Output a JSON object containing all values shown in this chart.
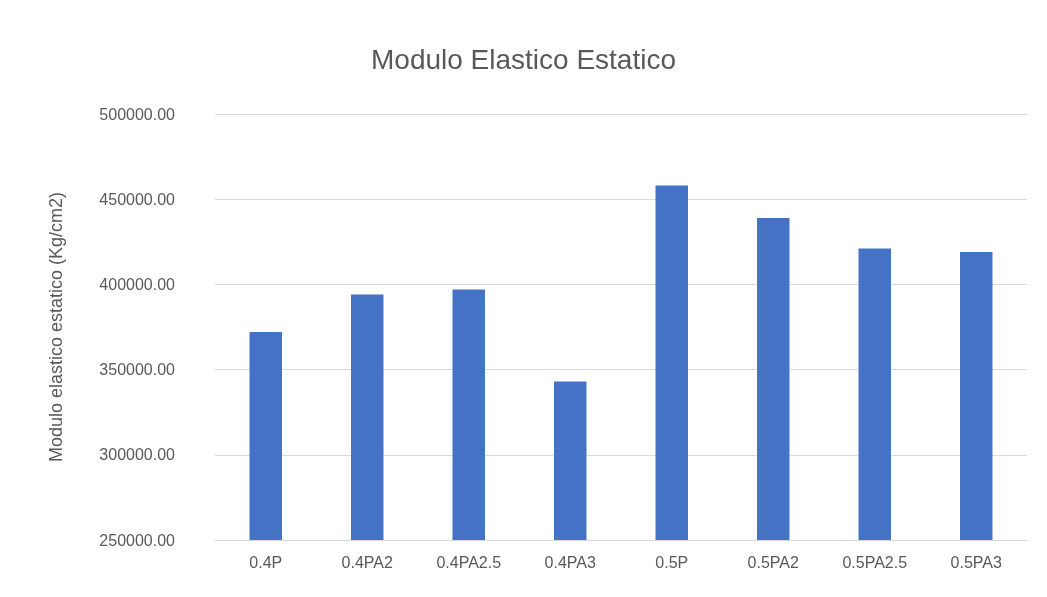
{
  "chart_data": {
    "type": "bar",
    "title": "Modulo Elastico Estatico",
    "ylabel": "Modulo elastico estatico (Kg/cm2)",
    "categories": [
      "0.4P",
      "0.4PA2",
      "0.4PA2.5",
      "0.4PA3",
      "0.5P",
      "0.5PA2",
      "0.5PA2.5",
      "0.5PA3"
    ],
    "values": [
      372000,
      394000,
      397000,
      343000,
      458000,
      439000,
      421000,
      419000
    ],
    "color": "#4472c4",
    "ylim": [
      250000,
      500000
    ],
    "yticks": [
      {
        "value": 250000,
        "label": "250000.00"
      },
      {
        "value": 300000,
        "label": "300000.00"
      },
      {
        "value": 350000,
        "label": "350000.00"
      },
      {
        "value": 400000,
        "label": "400000.00"
      },
      {
        "value": 450000,
        "label": "450000.00"
      },
      {
        "value": 500000,
        "label": "500000.00"
      }
    ],
    "grid": "y"
  }
}
